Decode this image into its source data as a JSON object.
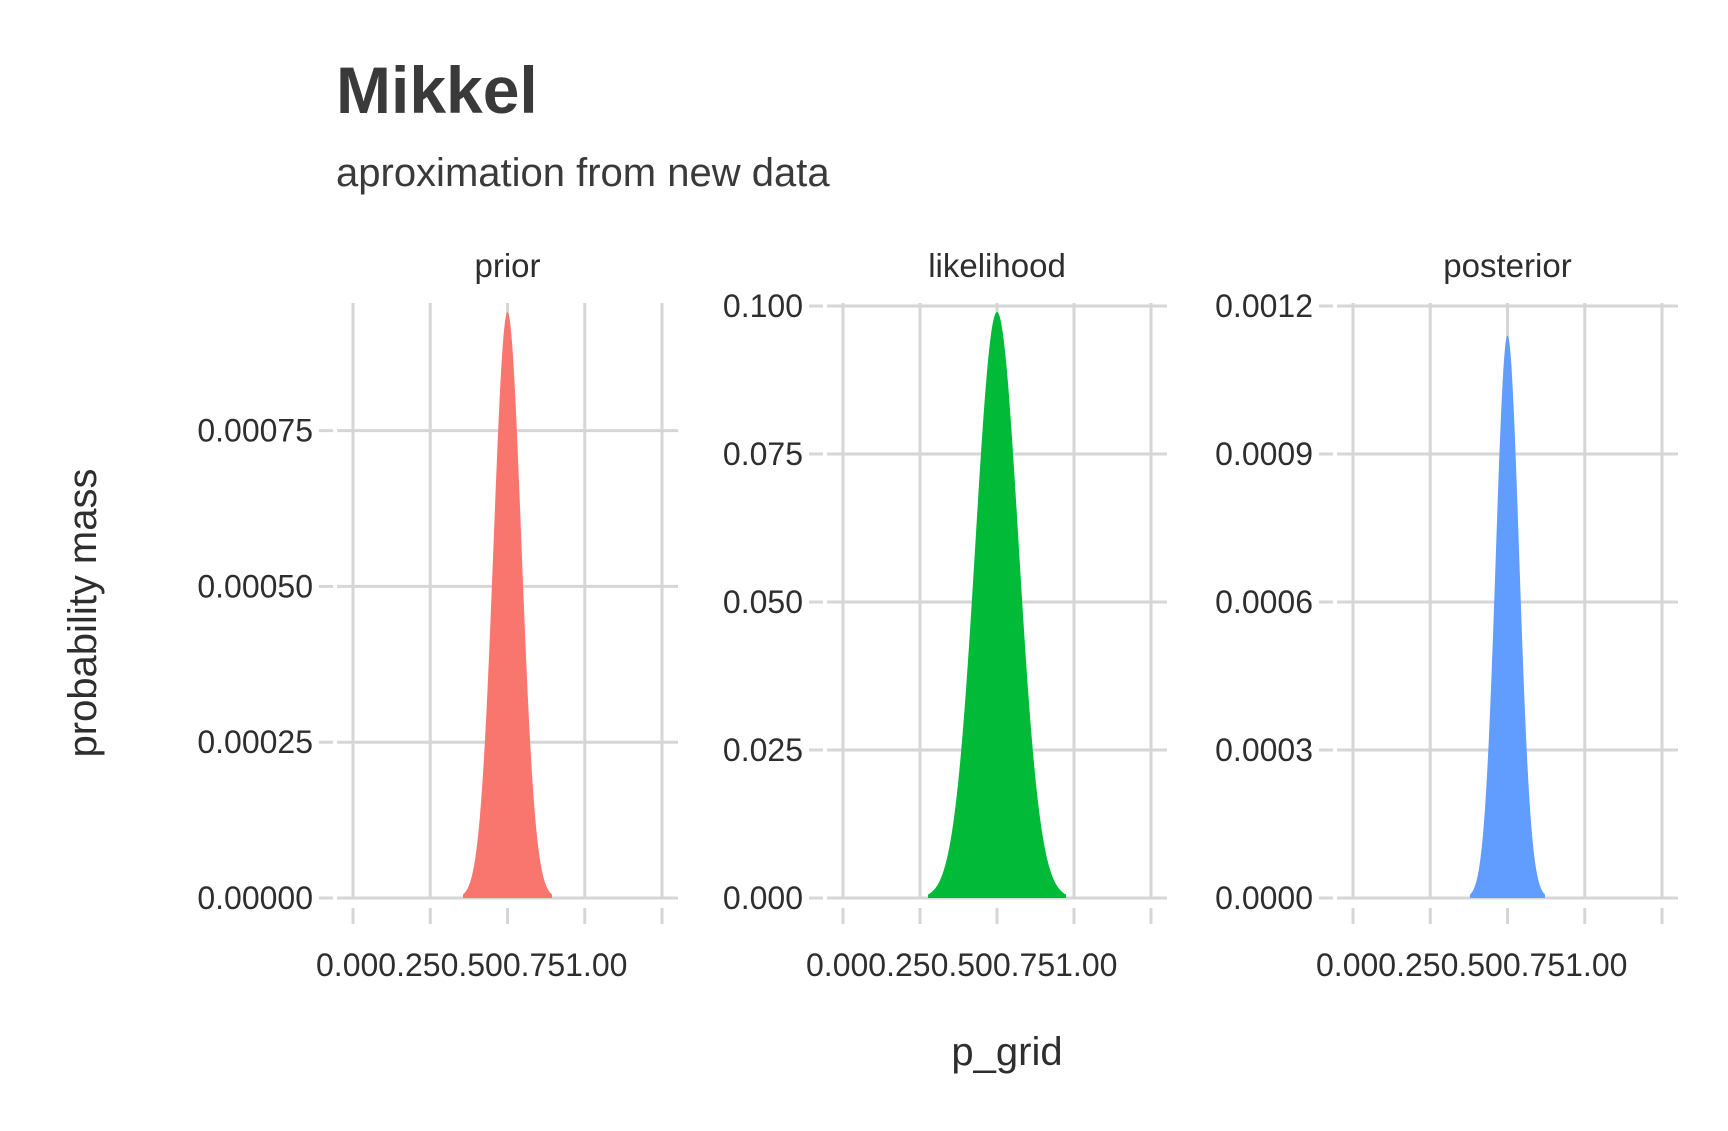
{
  "chart_data": {
    "type": "area",
    "title": "Mikkel",
    "subtitle": "aproximation from new data",
    "xlabel": "p_grid",
    "ylabel": "probability mass",
    "grid": true,
    "legend": "none",
    "x_ticks": [
      "0.00",
      "0.25",
      "0.50",
      "0.75",
      "1.00"
    ],
    "xlim": [
      0,
      1
    ],
    "facets": [
      {
        "name": "prior",
        "color": "#F8766D",
        "ylim": [
          0,
          0.00095
        ],
        "y_ticks": [
          "0.00000",
          "0.00025",
          "0.00050",
          "0.00075"
        ],
        "y_tick_values": [
          0,
          0.00025,
          0.0005,
          0.00075
        ],
        "peak_x": 0.5,
        "peak_y": 0.00094,
        "spread": 0.045
      },
      {
        "name": "likelihood",
        "color": "#00BA38",
        "ylim": [
          0,
          0.1
        ],
        "y_ticks": [
          "0.000",
          "0.025",
          "0.050",
          "0.075",
          "0.100"
        ],
        "y_tick_values": [
          0,
          0.025,
          0.05,
          0.075,
          0.1
        ],
        "peak_x": 0.5,
        "peak_y": 0.099,
        "spread": 0.07
      },
      {
        "name": "posterior",
        "color": "#619CFF",
        "ylim": [
          0,
          0.0012
        ],
        "y_ticks": [
          "0.0000",
          "0.0003",
          "0.0006",
          "0.0009",
          "0.0012"
        ],
        "y_tick_values": [
          0,
          0.0003,
          0.0006,
          0.0009,
          0.0012
        ],
        "peak_x": 0.5,
        "peak_y": 0.00114,
        "spread": 0.038
      }
    ]
  }
}
